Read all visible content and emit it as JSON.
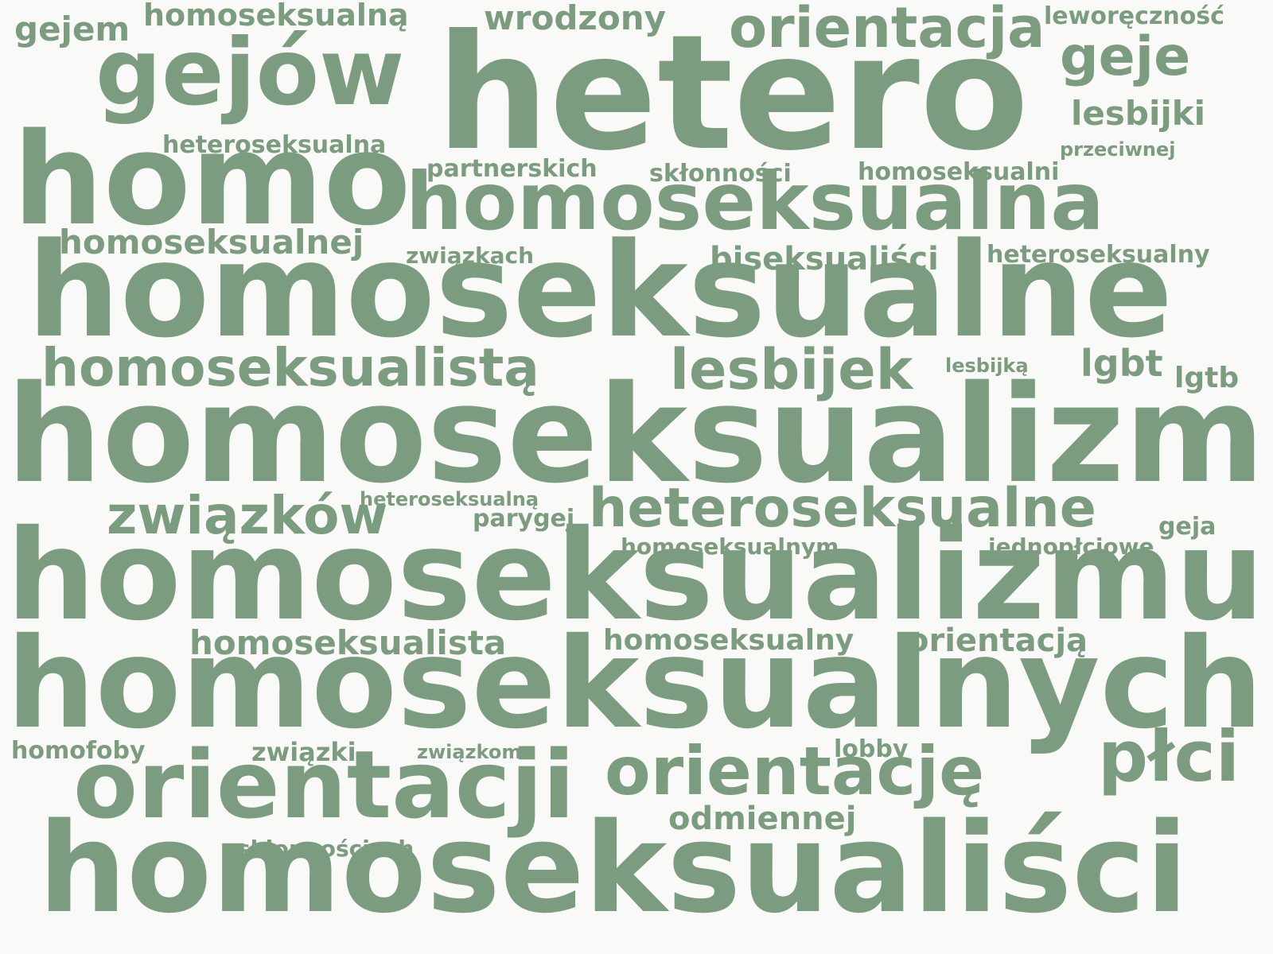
{
  "cloud": {
    "color": "#7b9c7e",
    "background": "#f9f9f7",
    "words": [
      {
        "text": "hetero",
        "size": 4
      },
      {
        "text": "homoseksualizm",
        "size": 4
      },
      {
        "text": "homoseksualizmu",
        "size": 4
      },
      {
        "text": "homoseksualnych",
        "size": 4
      },
      {
        "text": "homoseksualne",
        "size": 4
      },
      {
        "text": "homoseksualiści",
        "size": 4
      },
      {
        "text": "homo",
        "size": 4
      },
      {
        "text": "homoseksualna",
        "size": 3
      },
      {
        "text": "gejów",
        "size": 3
      },
      {
        "text": "orientacji",
        "size": 3
      },
      {
        "text": "orientację",
        "size": 3
      },
      {
        "text": "płci",
        "size": 2
      },
      {
        "text": "orientacja",
        "size": 2
      },
      {
        "text": "heteroseksualne",
        "size": 2
      },
      {
        "text": "homoseksualistą",
        "size": 2
      },
      {
        "text": "związków",
        "size": 2
      },
      {
        "text": "lesbijek",
        "size": 2
      },
      {
        "text": "geje",
        "size": 2
      },
      {
        "text": "lesbijki",
        "size": 1
      },
      {
        "text": "lgbt",
        "size": 1
      },
      {
        "text": "homoseksualista",
        "size": 1
      },
      {
        "text": "homoseksualnej",
        "size": 1
      },
      {
        "text": "wrodzony",
        "size": 1
      },
      {
        "text": "homoseksualną",
        "size": 1
      },
      {
        "text": "orientacją",
        "size": 1
      },
      {
        "text": "homoseksualny",
        "size": 1
      },
      {
        "text": "biseksualiści",
        "size": 1
      },
      {
        "text": "odmiennej",
        "size": 1
      },
      {
        "text": "gejem",
        "size": 1
      },
      {
        "text": "heteroseksualna",
        "size": 0
      },
      {
        "text": "homoseksualni",
        "size": 0
      },
      {
        "text": "skłonności",
        "size": 0
      },
      {
        "text": "partnerskich",
        "size": 0
      },
      {
        "text": "heteroseksualny",
        "size": 0
      },
      {
        "text": "leworęczność",
        "size": 0
      },
      {
        "text": "związkach",
        "size": 0
      },
      {
        "text": "związki",
        "size": 0
      },
      {
        "text": "homofoby",
        "size": 0
      },
      {
        "text": "lobby",
        "size": 0
      },
      {
        "text": "skłonnościach",
        "size": 0
      },
      {
        "text": "lgtb",
        "size": 0
      },
      {
        "text": "parygej",
        "size": 0
      },
      {
        "text": "homoseksualnym",
        "size": 0
      },
      {
        "text": "jednopłciowe",
        "size": 0
      },
      {
        "text": "geja",
        "size": 0
      },
      {
        "text": "przeciwnej",
        "size": 0
      },
      {
        "text": "lesbijką",
        "size": 0
      },
      {
        "text": "heteroseksualną",
        "size": 0
      },
      {
        "text": "związkom",
        "size": 0
      }
    ]
  }
}
